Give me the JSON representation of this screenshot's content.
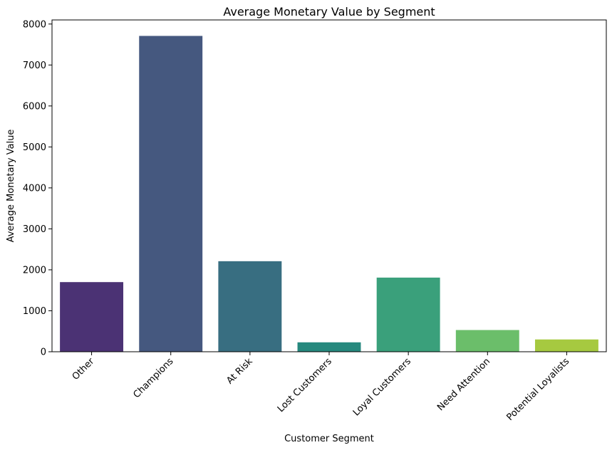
{
  "chart_data": {
    "type": "bar",
    "title": "Average Monetary Value by Segment",
    "xlabel": "Customer Segment",
    "ylabel": "Average Monetary Value",
    "categories": [
      "Other",
      "Champions",
      "At Risk",
      "Lost Customers",
      "Loyal Customers",
      "Need Attention",
      "Potential Loyalists"
    ],
    "values": [
      1700,
      7710,
      2210,
      230,
      1810,
      530,
      300
    ],
    "colors": [
      "#4b3274",
      "#45587f",
      "#386e81",
      "#26897e",
      "#3aa07b",
      "#6bbe6a",
      "#a6c940"
    ],
    "ylim": [
      0,
      8100
    ],
    "yticks": [
      0,
      1000,
      2000,
      3000,
      4000,
      5000,
      6000,
      7000,
      8000
    ],
    "ytick_labels": [
      "0",
      "1000",
      "2000",
      "3000",
      "4000",
      "5000",
      "6000",
      "7000",
      "8000"
    ],
    "grid": false,
    "legend": "none"
  }
}
